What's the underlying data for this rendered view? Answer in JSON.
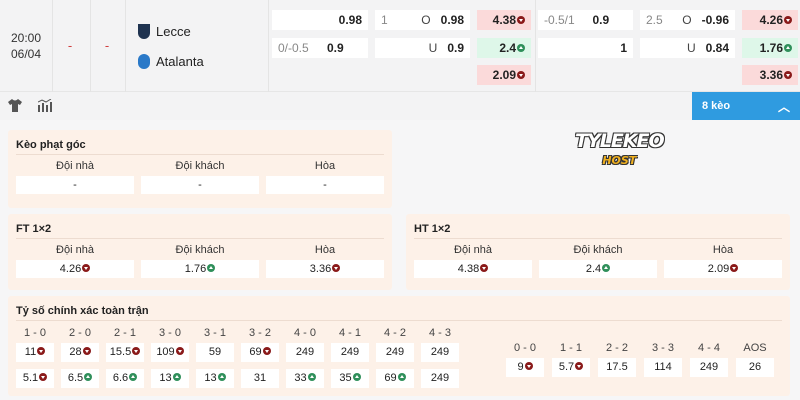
{
  "match": {
    "time": "20:00",
    "date": "06/04",
    "score_home": "-",
    "score_away": "-",
    "home": "Lecce",
    "away": "Atalanta"
  },
  "odds": {
    "r1": [
      {
        "h": "",
        "v": "0.98"
      },
      {
        "h": "1",
        "s": "O",
        "v": "0.98"
      },
      {
        "v": "4.38",
        "c": "red"
      },
      {
        "h": "-0.5/1",
        "v": "0.9"
      },
      {
        "h": "2.5",
        "s": "O",
        "v": "-0.96"
      },
      {
        "v": "4.26",
        "c": "red"
      }
    ],
    "r2": [
      {
        "h": "0/-0.5",
        "v": "0.9"
      },
      {
        "h": "",
        "s": "U",
        "v": "0.9"
      },
      {
        "v": "2.4",
        "c": "grn"
      },
      {
        "h": "",
        "v": "1"
      },
      {
        "h": "",
        "s": "U",
        "v": "0.84"
      },
      {
        "v": "1.76",
        "c": "grn"
      }
    ],
    "r3": [
      {
        "v": "2.09",
        "c": "red"
      },
      {
        "v": "3.36",
        "c": "red"
      }
    ]
  },
  "toolbar": {
    "shirt_icon": "shirt-icon",
    "stats_icon": "bar-chart-icon",
    "more_label": "8 kèo"
  },
  "logo": {
    "line1": "TYLEKEO",
    "line2": "HOST"
  },
  "corner": {
    "title": "Kèo phạt góc",
    "cols": [
      {
        "label": "Đội nhà",
        "value": "-"
      },
      {
        "label": "Đội khách",
        "value": "-"
      },
      {
        "label": "Hòa",
        "value": "-"
      }
    ]
  },
  "ft": {
    "title": "FT 1×2",
    "cols": [
      {
        "label": "Đội nhà",
        "value": "4.26",
        "c": "red"
      },
      {
        "label": "Đội khách",
        "value": "1.76",
        "c": "grn"
      },
      {
        "label": "Hòa",
        "value": "3.36",
        "c": "red"
      }
    ]
  },
  "ht": {
    "title": "HT 1×2",
    "cols": [
      {
        "label": "Đội nhà",
        "value": "4.38",
        "c": "red"
      },
      {
        "label": "Đội khách",
        "value": "2.4",
        "c": "grn"
      },
      {
        "label": "Hòa",
        "value": "2.09",
        "c": "red"
      }
    ]
  },
  "exact": {
    "title": "Tỷ số chính xác toàn trận",
    "left": [
      {
        "label": "1 - 0",
        "home": {
          "v": "11",
          "c": "red"
        },
        "away": {
          "v": "5.1",
          "c": "red"
        }
      },
      {
        "label": "2 - 0",
        "home": {
          "v": "28",
          "c": "red"
        },
        "away": {
          "v": "6.5",
          "c": "grn"
        }
      },
      {
        "label": "2 - 1",
        "home": {
          "v": "15.5",
          "c": "red"
        },
        "away": {
          "v": "6.6",
          "c": "grn"
        }
      },
      {
        "label": "3 - 0",
        "home": {
          "v": "109",
          "c": "red"
        },
        "away": {
          "v": "13",
          "c": "grn"
        }
      },
      {
        "label": "3 - 1",
        "home": {
          "v": "59"
        },
        "away": {
          "v": "13",
          "c": "grn"
        }
      },
      {
        "label": "3 - 2",
        "home": {
          "v": "69",
          "c": "red"
        },
        "away": {
          "v": "31"
        }
      },
      {
        "label": "4 - 0",
        "home": {
          "v": "249"
        },
        "away": {
          "v": "33",
          "c": "grn"
        }
      },
      {
        "label": "4 - 1",
        "home": {
          "v": "249"
        },
        "away": {
          "v": "35",
          "c": "grn"
        }
      },
      {
        "label": "4 - 2",
        "home": {
          "v": "249"
        },
        "away": {
          "v": "69",
          "c": "grn"
        }
      },
      {
        "label": "4 - 3",
        "home": {
          "v": "249"
        },
        "away": {
          "v": "249"
        }
      }
    ],
    "right": [
      {
        "label": "0 - 0",
        "v": "9",
        "c": "red"
      },
      {
        "label": "1 - 1",
        "v": "5.7",
        "c": "red"
      },
      {
        "label": "2 - 2",
        "v": "17.5"
      },
      {
        "label": "3 - 3",
        "v": "114"
      },
      {
        "label": "4 - 4",
        "v": "249"
      },
      {
        "label": "AOS",
        "v": "26"
      }
    ]
  }
}
